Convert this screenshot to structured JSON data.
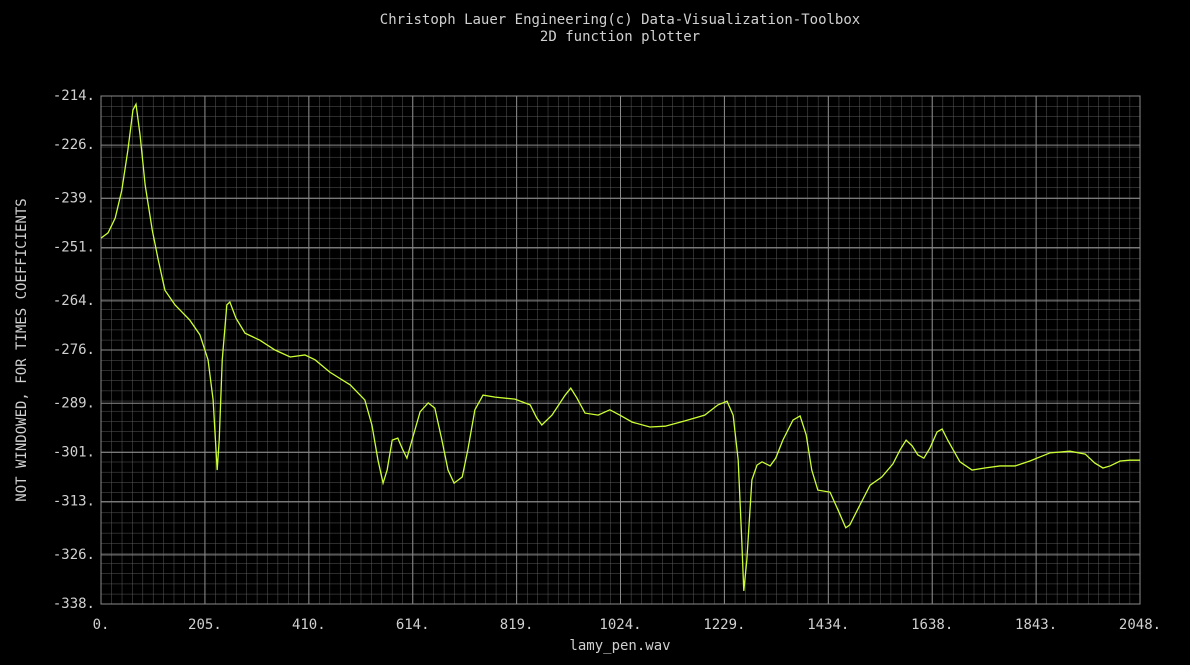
{
  "chart_data": {
    "type": "line",
    "title": "Christoph Lauer Engineering(c) Data-Visualization-Toolbox",
    "subtitle": "2D function plotter",
    "x_label": "lamy_pen.wav",
    "y_label": "NOT WINDOWED, FOR TIMES COEFFICIENTS",
    "color": "#ccff33",
    "grid": true,
    "xlim": [
      0,
      2048
    ],
    "ylim": [
      -338,
      -214
    ],
    "xticks": [
      {
        "value": 0,
        "label": "0."
      },
      {
        "value": 204.8,
        "label": "205."
      },
      {
        "value": 409.6,
        "label": "410."
      },
      {
        "value": 614.4,
        "label": "614."
      },
      {
        "value": 819.2,
        "label": "819."
      },
      {
        "value": 1024,
        "label": "1024."
      },
      {
        "value": 1228.8,
        "label": "1229."
      },
      {
        "value": 1433.6,
        "label": "1434."
      },
      {
        "value": 1638.4,
        "label": "1638."
      },
      {
        "value": 1843.2,
        "label": "1843."
      },
      {
        "value": 2048,
        "label": "2048."
      }
    ],
    "yticks": [
      {
        "value": -214,
        "label": "-214."
      },
      {
        "value": -226,
        "label": "-226."
      },
      {
        "value": -239,
        "label": "-239."
      },
      {
        "value": -251,
        "label": "-251."
      },
      {
        "value": -264,
        "label": "-264."
      },
      {
        "value": -276,
        "label": "-276."
      },
      {
        "value": -289,
        "label": "-289."
      },
      {
        "value": -301,
        "label": "-301."
      },
      {
        "value": -313,
        "label": "-313."
      },
      {
        "value": -326,
        "label": "-326."
      },
      {
        "value": -338,
        "label": "-338."
      }
    ],
    "x": [
      0,
      14,
      28,
      41,
      53,
      63,
      69,
      77,
      87,
      101,
      112,
      126,
      146,
      175,
      195,
      211,
      221,
      229,
      233,
      239,
      248,
      254,
      266,
      284,
      313,
      343,
      373,
      402,
      422,
      451,
      491,
      520,
      534,
      546,
      556,
      564,
      574,
      585,
      595,
      603,
      613,
      629,
      645,
      658,
      672,
      684,
      696,
      712,
      723,
      737,
      753,
      777,
      816,
      846,
      859,
      869,
      889,
      915,
      926,
      938,
      954,
      980,
      1003,
      1023,
      1047,
      1082,
      1112,
      1151,
      1190,
      1216,
      1234,
      1246,
      1256,
      1263,
      1267,
      1273,
      1283,
      1293,
      1303,
      1319,
      1330,
      1344,
      1364,
      1378,
      1390,
      1401,
      1413,
      1437,
      1453,
      1468,
      1476,
      1496,
      1516,
      1539,
      1561,
      1575,
      1587,
      1599,
      1610,
      1622,
      1634,
      1648,
      1658,
      1669,
      1693,
      1717,
      1742,
      1772,
      1802,
      1831,
      1871,
      1910,
      1940,
      1959,
      1975,
      1989,
      2009,
      2028,
      2048
    ],
    "values": [
      -248.7,
      -247.4,
      -243.8,
      -237.0,
      -227.2,
      -217.4,
      -216.0,
      -223.5,
      -235.7,
      -246.7,
      -253.5,
      -261.4,
      -265.0,
      -268.7,
      -272.3,
      -278.4,
      -288.2,
      -305.3,
      -298.0,
      -278.4,
      -265.0,
      -264.3,
      -268.2,
      -271.9,
      -273.6,
      -276.0,
      -277.7,
      -277.2,
      -278.4,
      -281.4,
      -284.5,
      -288.2,
      -294.3,
      -302.9,
      -308.5,
      -305.3,
      -298.0,
      -297.5,
      -300.4,
      -302.4,
      -298.0,
      -291.1,
      -288.9,
      -290.2,
      -298.0,
      -305.3,
      -308.5,
      -307.0,
      -300.4,
      -290.6,
      -287.0,
      -287.5,
      -288.0,
      -289.4,
      -292.6,
      -294.3,
      -291.9,
      -287.0,
      -285.3,
      -287.7,
      -291.4,
      -291.9,
      -290.6,
      -291.9,
      -293.6,
      -294.8,
      -294.6,
      -293.3,
      -291.9,
      -289.4,
      -288.5,
      -291.9,
      -302.9,
      -322.4,
      -334.8,
      -327.3,
      -307.7,
      -304.1,
      -303.3,
      -304.3,
      -302.4,
      -298.0,
      -293.1,
      -292.1,
      -296.7,
      -305.3,
      -310.2,
      -310.7,
      -315.1,
      -319.4,
      -318.7,
      -313.8,
      -309.0,
      -307.0,
      -303.8,
      -300.4,
      -298.0,
      -299.4,
      -301.6,
      -302.4,
      -299.9,
      -296.0,
      -295.3,
      -298.0,
      -303.3,
      -305.3,
      -304.8,
      -304.3,
      -304.3,
      -303.1,
      -301.1,
      -300.7,
      -301.4,
      -303.6,
      -304.8,
      -304.3,
      -303.1,
      -302.9,
      -302.9
    ]
  }
}
